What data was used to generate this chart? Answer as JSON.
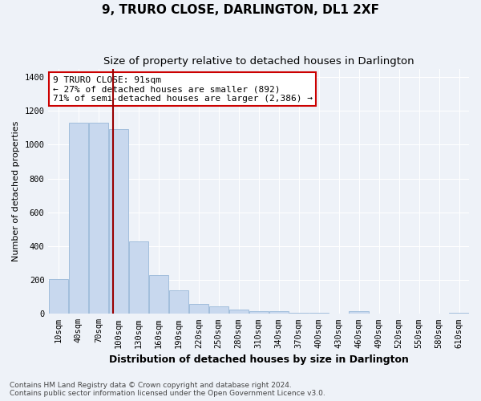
{
  "title": "9, TRURO CLOSE, DARLINGTON, DL1 2XF",
  "subtitle": "Size of property relative to detached houses in Darlington",
  "xlabel": "Distribution of detached houses by size in Darlington",
  "ylabel": "Number of detached properties",
  "footer_line1": "Contains HM Land Registry data © Crown copyright and database right 2024.",
  "footer_line2": "Contains public sector information licensed under the Open Government Licence v3.0.",
  "bar_labels": [
    "10sqm",
    "40sqm",
    "70sqm",
    "100sqm",
    "130sqm",
    "160sqm",
    "190sqm",
    "220sqm",
    "250sqm",
    "280sqm",
    "310sqm",
    "340sqm",
    "370sqm",
    "400sqm",
    "430sqm",
    "460sqm",
    "490sqm",
    "520sqm",
    "550sqm",
    "580sqm",
    "610sqm"
  ],
  "bar_values": [
    205,
    1130,
    1130,
    1090,
    430,
    230,
    140,
    60,
    45,
    25,
    15,
    15,
    5,
    5,
    0,
    15,
    0,
    0,
    0,
    0,
    5
  ],
  "bar_color": "#c8d8ee",
  "bar_edge_color": "#99b8d8",
  "vline_x_index": 2.73,
  "vline_color": "#990000",
  "annotation_text": "9 TRURO CLOSE: 91sqm\n← 27% of detached houses are smaller (892)\n71% of semi-detached houses are larger (2,386) →",
  "annotation_box_color": "white",
  "annotation_box_edge_color": "#cc0000",
  "ylim": [
    0,
    1450
  ],
  "yticks": [
    0,
    200,
    400,
    600,
    800,
    1000,
    1200,
    1400
  ],
  "plot_bg_color": "#eef2f8",
  "fig_bg_color": "#eef2f8",
  "title_fontsize": 11,
  "subtitle_fontsize": 9.5,
  "xlabel_fontsize": 9,
  "ylabel_fontsize": 8,
  "tick_fontsize": 7.5,
  "annotation_fontsize": 8,
  "footer_fontsize": 6.5
}
